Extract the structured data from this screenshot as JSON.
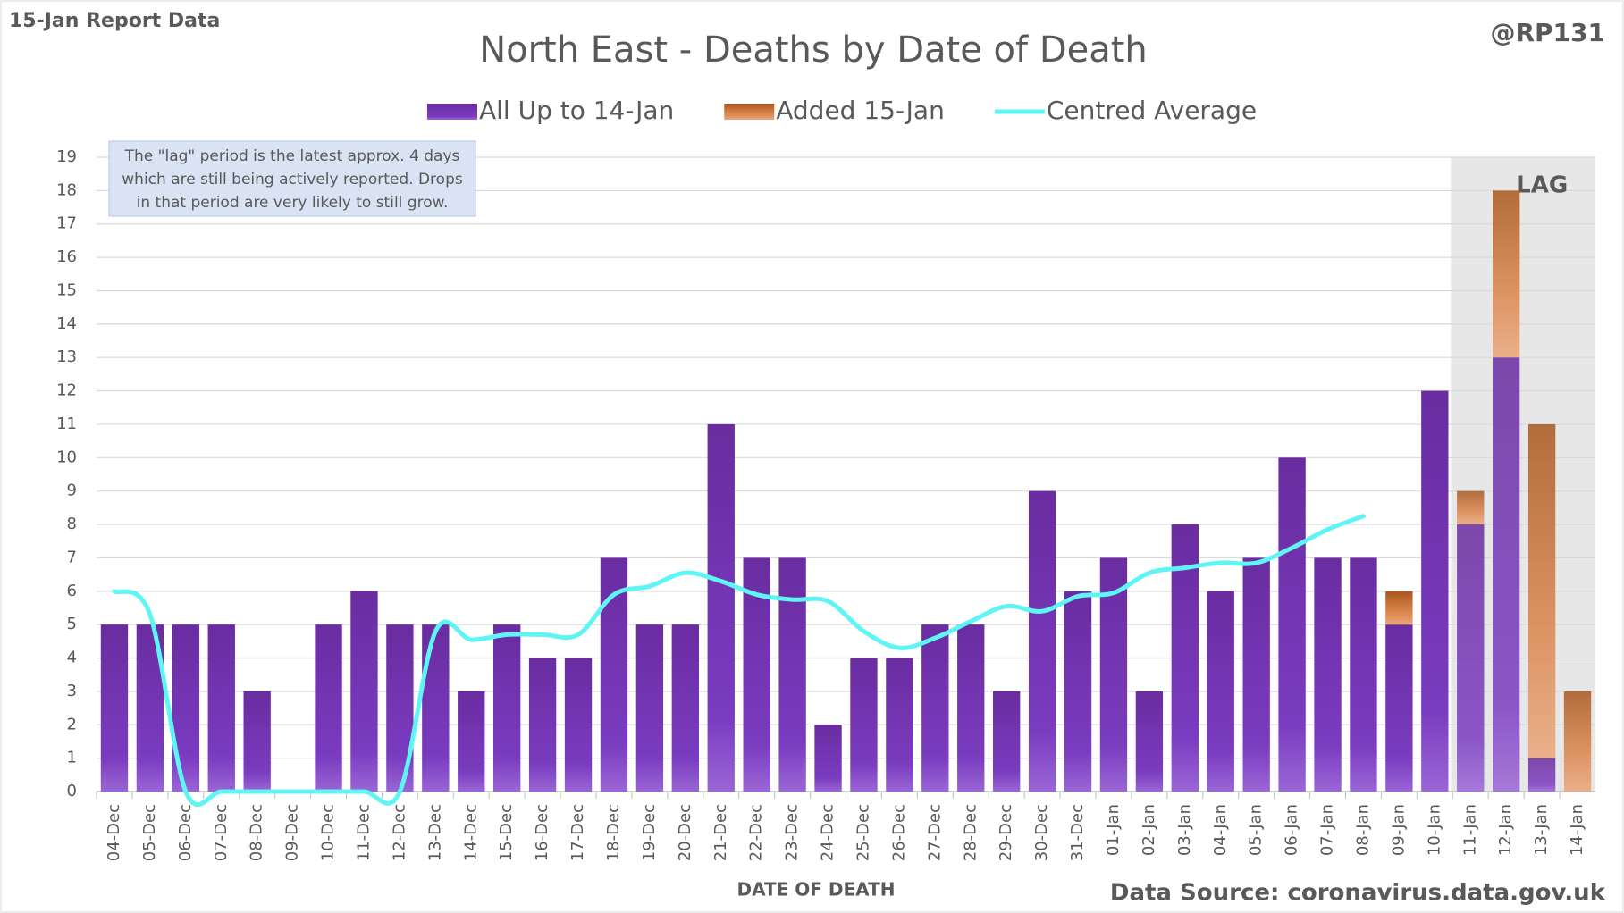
{
  "chart_data": {
    "type": "bar",
    "title": "North East - Deaths by Date of Death",
    "subtitle": "15-Jan Report Data",
    "credit": "@RP131",
    "source": "Data Source: coronavirus.data.gov.uk",
    "x_label": "DATE OF DEATH",
    "annotations": {
      "lag": "LAG",
      "note": [
        "The \"lag\" period is the latest approx. 4 days",
        "which are still being actively reported.  Drops",
        "in that period are very likely to still grow."
      ]
    },
    "lag_start": "11-Jan",
    "categories": [
      "04-Dec",
      "05-Dec",
      "06-Dec",
      "07-Dec",
      "08-Dec",
      "09-Dec",
      "10-Dec",
      "11-Dec",
      "12-Dec",
      "13-Dec",
      "14-Dec",
      "15-Dec",
      "16-Dec",
      "17-Dec",
      "18-Dec",
      "19-Dec",
      "20-Dec",
      "21-Dec",
      "22-Dec",
      "23-Dec",
      "24-Dec",
      "25-Dec",
      "26-Dec",
      "27-Dec",
      "28-Dec",
      "29-Dec",
      "30-Dec",
      "31-Dec",
      "01-Jan",
      "02-Jan",
      "03-Jan",
      "04-Jan",
      "05-Jan",
      "06-Jan",
      "07-Jan",
      "08-Jan",
      "09-Jan",
      "10-Jan",
      "11-Jan",
      "12-Jan",
      "13-Jan",
      "14-Jan"
    ],
    "series": [
      {
        "name": "All Up to 14-Jan",
        "color": "#7030a0",
        "kind": "bar",
        "values": [
          5,
          5,
          5,
          5,
          3,
          0,
          5,
          6,
          5,
          5,
          3,
          5,
          4,
          4,
          7,
          5,
          5,
          11,
          7,
          7,
          2,
          4,
          4,
          5,
          5,
          3,
          9,
          6,
          7,
          3,
          8,
          6,
          7,
          10,
          7,
          7,
          5,
          12,
          8,
          13,
          1,
          0
        ]
      },
      {
        "name": "Added 15-Jan",
        "color": "#c55a11",
        "kind": "bar",
        "values": [
          0,
          0,
          0,
          0,
          0,
          0,
          0,
          0,
          0,
          0,
          0,
          0,
          0,
          0,
          0,
          0,
          0,
          0,
          0,
          0,
          0,
          0,
          0,
          0,
          0,
          0,
          0,
          0,
          0,
          0,
          0,
          0,
          0,
          0,
          0,
          0,
          1,
          0,
          1,
          5,
          10,
          3
        ]
      },
      {
        "name": "Centred Average",
        "color": "#5ff5f5",
        "kind": "line",
        "values": [
          6.0,
          5.3,
          0,
          0,
          0,
          0,
          0,
          0,
          0,
          4.8,
          4.55,
          4.7,
          4.7,
          4.7,
          5.9,
          6.15,
          6.55,
          6.3,
          5.9,
          5.75,
          5.7,
          4.8,
          4.3,
          4.6,
          5.1,
          5.55,
          5.4,
          5.85,
          5.95,
          6.55,
          6.7,
          6.85,
          6.85,
          7.3,
          7.85,
          8.25,
          null,
          null,
          null,
          null,
          null,
          null
        ]
      }
    ],
    "ylim": [
      0,
      19
    ],
    "yticks": [
      0,
      1,
      2,
      3,
      4,
      5,
      6,
      7,
      8,
      9,
      10,
      11,
      12,
      13,
      14,
      15,
      16,
      17,
      18,
      19
    ],
    "grid": true,
    "legend": "top"
  }
}
